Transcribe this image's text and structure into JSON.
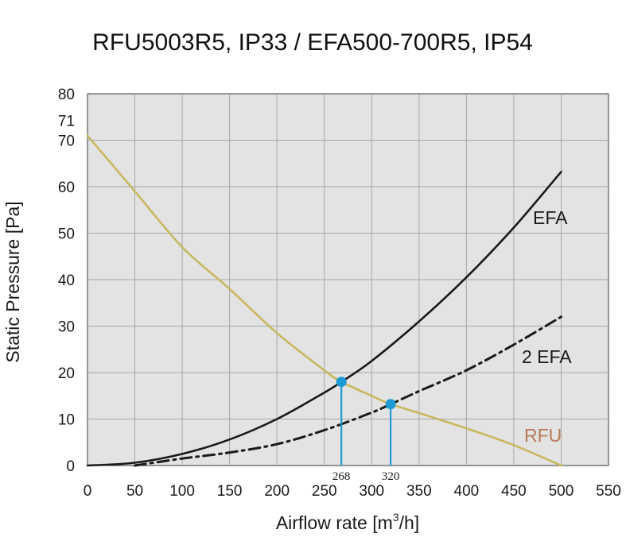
{
  "chart_data": {
    "type": "line",
    "title": "RFU5003R5, IP33 / EFA500-700R5, IP54",
    "xlabel": "Airflow rate [m",
    "xlabel_sup": "3",
    "xlabel_end": "/h]",
    "ylabel": "Static Pressure [Pa]",
    "xlim": [
      0,
      550
    ],
    "ylim": [
      0,
      80
    ],
    "x_ticks": [
      0,
      50,
      100,
      150,
      200,
      250,
      300,
      350,
      400,
      450,
      500,
      550
    ],
    "y_ticks": [
      0,
      10,
      20,
      30,
      40,
      50,
      60,
      70,
      80
    ],
    "grid": true,
    "extra_y_tick": {
      "value": 71,
      "label": "71"
    },
    "series": [
      {
        "name": "EFA",
        "color": "#1a1a1a",
        "style": "solid",
        "x": [
          0,
          50,
          100,
          150,
          200,
          250,
          268,
          300,
          350,
          400,
          450,
          500
        ],
        "y": [
          0,
          0.6,
          2.5,
          5.6,
          10,
          15.7,
          18,
          22.5,
          31,
          40.5,
          51.2,
          63.2
        ]
      },
      {
        "name": "2 EFA",
        "color": "#1a1a1a",
        "style": "dashdot",
        "x": [
          50,
          100,
          150,
          200,
          250,
          300,
          320,
          350,
          400,
          450,
          500
        ],
        "y": [
          0,
          1.5,
          2.8,
          4.6,
          7.6,
          11.4,
          13.2,
          16,
          20.5,
          26,
          32
        ]
      },
      {
        "name": "RFU",
        "color": "#c6b85e",
        "label_color": "#b87a5a",
        "style": "solid",
        "x": [
          0,
          50,
          100,
          150,
          200,
          250,
          268,
          300,
          320,
          350,
          400,
          450,
          500
        ],
        "y": [
          71,
          59,
          47,
          38,
          28.5,
          20.5,
          18,
          15,
          13.2,
          11.3,
          8,
          4.4,
          0
        ]
      }
    ],
    "operating_points": [
      {
        "x": 268,
        "y": 18,
        "label": "268",
        "color": "#1b9ad6"
      },
      {
        "x": 320,
        "y": 13.2,
        "label": "320",
        "color": "#1b9ad6"
      }
    ]
  }
}
